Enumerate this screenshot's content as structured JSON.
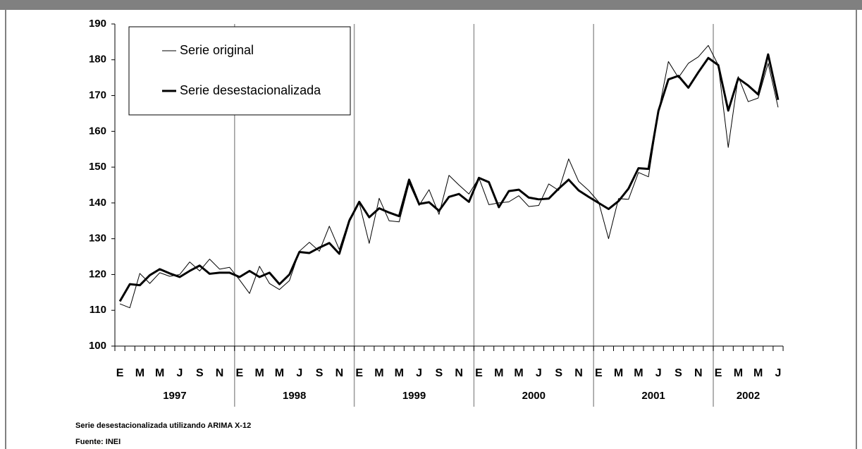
{
  "chart_data": {
    "type": "line",
    "categories": [
      "E",
      null,
      "M",
      null,
      "M",
      null,
      "J",
      null,
      "S",
      null,
      "N",
      null,
      "E",
      null,
      "M",
      null,
      "M",
      null,
      "J",
      null,
      "S",
      null,
      "N",
      null,
      "E",
      null,
      "M",
      null,
      "M",
      null,
      "J",
      null,
      "S",
      null,
      "N",
      null,
      "E",
      null,
      "M",
      null,
      "M",
      null,
      "J",
      null,
      "S",
      null,
      "N",
      null,
      "E",
      null,
      "M",
      null,
      "M",
      null,
      "J",
      null,
      "S",
      null,
      "N",
      null,
      "E",
      null,
      "M",
      null,
      "M",
      null,
      "J"
    ],
    "x_groups": [
      "1997",
      "1998",
      "1999",
      "2000",
      "2001",
      "2002"
    ],
    "series": [
      {
        "name": "Serie original",
        "color": "#000000",
        "width": 1,
        "values": [
          111.8,
          110.7,
          120.3,
          117.5,
          120.5,
          119.5,
          120,
          123.5,
          121,
          124.3,
          121.5,
          122,
          118.5,
          114.7,
          122.3,
          117.5,
          115.8,
          118.3,
          126.5,
          129,
          126.5,
          133.5,
          127,
          135.5,
          140,
          128.7,
          141.3,
          135,
          134.7,
          145.5,
          139.3,
          143.7,
          136.8,
          147.7,
          145,
          142.5,
          147,
          139.5,
          140,
          140.3,
          142,
          139,
          139.3,
          145.3,
          143.5,
          152.3,
          146,
          143.5,
          140.3,
          130,
          141.2,
          141,
          148.5,
          147.3,
          165.3,
          179.5,
          175,
          179,
          180.8,
          184,
          178.5,
          155.5,
          175.3,
          168.3,
          169.3,
          179,
          166.7
        ]
      },
      {
        "name": "Serie desestacionalizada",
        "color": "#000000",
        "width": 3,
        "values": [
          112.5,
          117.3,
          117,
          119.8,
          121.5,
          120.3,
          119.3,
          121,
          122.5,
          120.2,
          120.5,
          120.5,
          119.3,
          121,
          119.3,
          120.5,
          117.3,
          120,
          126.3,
          126,
          127.5,
          128.8,
          125.8,
          135,
          140.3,
          136,
          138.5,
          137.3,
          136.3,
          146.5,
          139.7,
          140.2,
          137.8,
          141.7,
          142.5,
          140.3,
          147,
          145.8,
          138.8,
          143.3,
          143.7,
          141.5,
          141,
          141.2,
          144,
          146.5,
          143.5,
          141.7,
          140,
          138.3,
          140.5,
          144,
          149.7,
          149.5,
          165.7,
          174.5,
          175.5,
          172.2,
          176.5,
          180.5,
          178.5,
          165.8,
          174.8,
          172.8,
          170.3,
          181.5,
          168.8
        ]
      }
    ],
    "ylim": [
      100,
      190
    ],
    "yticks": [
      100,
      110,
      120,
      130,
      140,
      150,
      160,
      170,
      180,
      190
    ],
    "notes": [
      "Serie desestacionalizada utilizando ARIMA X-12",
      "Fuente: INEI"
    ]
  }
}
